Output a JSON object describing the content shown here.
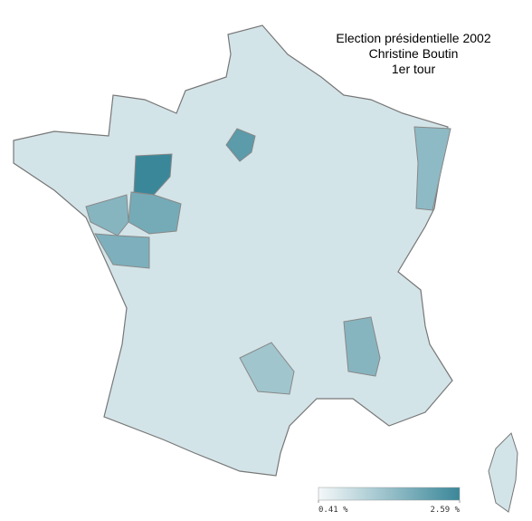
{
  "chart_data": {
    "type": "choropleth",
    "title": "Election présidentielle 2002",
    "subtitle": "Christine Boutin",
    "note": "1er tour",
    "colors": [
      "#f4f8f9",
      "#3a8799"
    ],
    "clim": [
      0.41,
      2.59
    ],
    "cticks": [
      {
        "value": 0.41,
        "label": "0.41 %"
      },
      {
        "value": 2.59,
        "label": "2.59 %"
      }
    ],
    "base_value": 0.8,
    "values": [
      2.59,
      2.2,
      1.9,
      1.7,
      1.8,
      1.6,
      1.7,
      1.4
    ]
  }
}
